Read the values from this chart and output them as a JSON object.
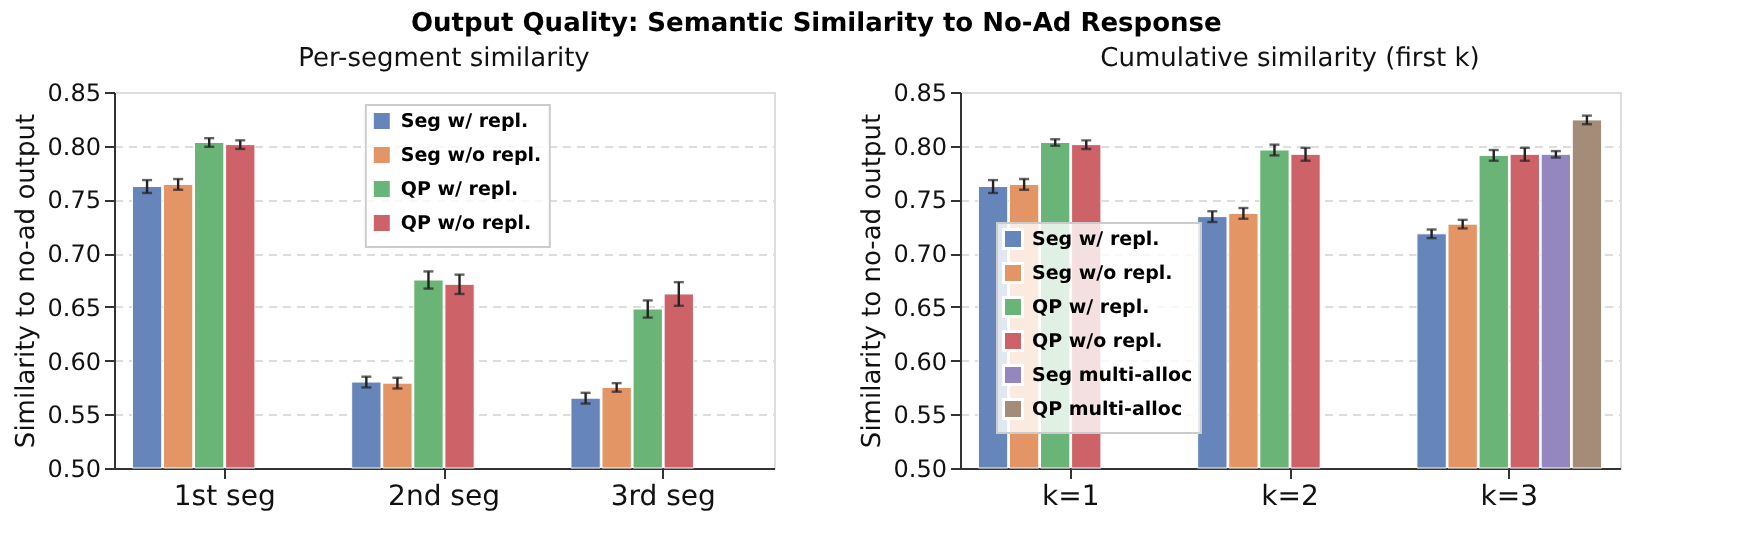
{
  "chart_data": [
    {
      "type": "bar",
      "title": "Per-segment similarity",
      "annotations": [
        "Output Quality: Semantic Similarity to No-Ad Response"
      ],
      "ylabel": "Similarity to no-ad output",
      "categories": [
        "1st seg",
        "2nd seg",
        "3rd seg"
      ],
      "ylim": [
        0.5,
        0.85
      ],
      "yticks": [
        {
          "value": 0.5,
          "label": "0.50"
        },
        0.55,
        {
          "value": 0.6,
          "label": "0.60"
        },
        0.65,
        {
          "value": 0.7,
          "label": "0.70"
        },
        0.75,
        {
          "value": 0.8,
          "label": "0.80"
        },
        0.85
      ],
      "grid": "y",
      "legend": "top",
      "series": [
        {
          "name": "Seg w/ repl.",
          "color": "#6685bb",
          "values": [
            0.762,
            0.58,
            0.565
          ],
          "errors": [
            0.006,
            0.005,
            0.005
          ]
        },
        {
          "name": "Seg w/o repl.",
          "color": "#e39565",
          "values": [
            0.764,
            0.579,
            0.575
          ],
          "errors": [
            0.005,
            0.005,
            0.004
          ]
        },
        {
          "name": "QP w/ repl.",
          "color": "#6bb477",
          "values": [
            0.803,
            0.675,
            0.648
          ],
          "errors": [
            0.004,
            0.008,
            0.008
          ]
        },
        {
          "name": "QP w/o repl.",
          "color": "#cd6368",
          "values": [
            0.801,
            0.671,
            0.662
          ],
          "errors": [
            0.004,
            0.009,
            0.011
          ]
        }
      ]
    },
    {
      "type": "bar",
      "title": "Cumulative similarity (first k)",
      "ylabel": "Similarity to no-ad output",
      "categories": [
        "k=1",
        "k=2",
        "k=3"
      ],
      "ylim": [
        0.5,
        0.85
      ],
      "yticks": [
        {
          "value": 0.5,
          "label": "0.50"
        },
        0.55,
        {
          "value": 0.6,
          "label": "0.60"
        },
        0.65,
        {
          "value": 0.7,
          "label": "0.70"
        },
        0.75,
        {
          "value": 0.8,
          "label": "0.80"
        },
        0.85
      ],
      "grid": "y",
      "legend": "bottom left",
      "series": [
        {
          "name": "Seg w/ repl.",
          "color": "#6685bb",
          "values": [
            0.762,
            0.734,
            0.718
          ],
          "errors": [
            0.006,
            0.005,
            0.004
          ]
        },
        {
          "name": "Seg w/o repl.",
          "color": "#e39565",
          "values": [
            0.764,
            0.737,
            0.727
          ],
          "errors": [
            0.005,
            0.005,
            0.004
          ]
        },
        {
          "name": "QP w/ repl.",
          "color": "#6bb477",
          "values": [
            0.803,
            0.796,
            0.791
          ],
          "errors": [
            0.003,
            0.005,
            0.005
          ]
        },
        {
          "name": "QP w/o repl.",
          "color": "#cd6368",
          "values": [
            0.801,
            0.792,
            0.792
          ],
          "errors": [
            0.004,
            0.006,
            0.006
          ]
        },
        {
          "name": "Seg multi-alloc",
          "color": "#9486bf",
          "values": [
            null,
            null,
            0.792
          ],
          "errors": [
            null,
            null,
            0.003
          ]
        },
        {
          "name": "QP multi-alloc",
          "color": "#a48c78",
          "values": [
            null,
            null,
            0.824
          ],
          "errors": [
            null,
            null,
            0.004
          ]
        }
      ]
    }
  ]
}
